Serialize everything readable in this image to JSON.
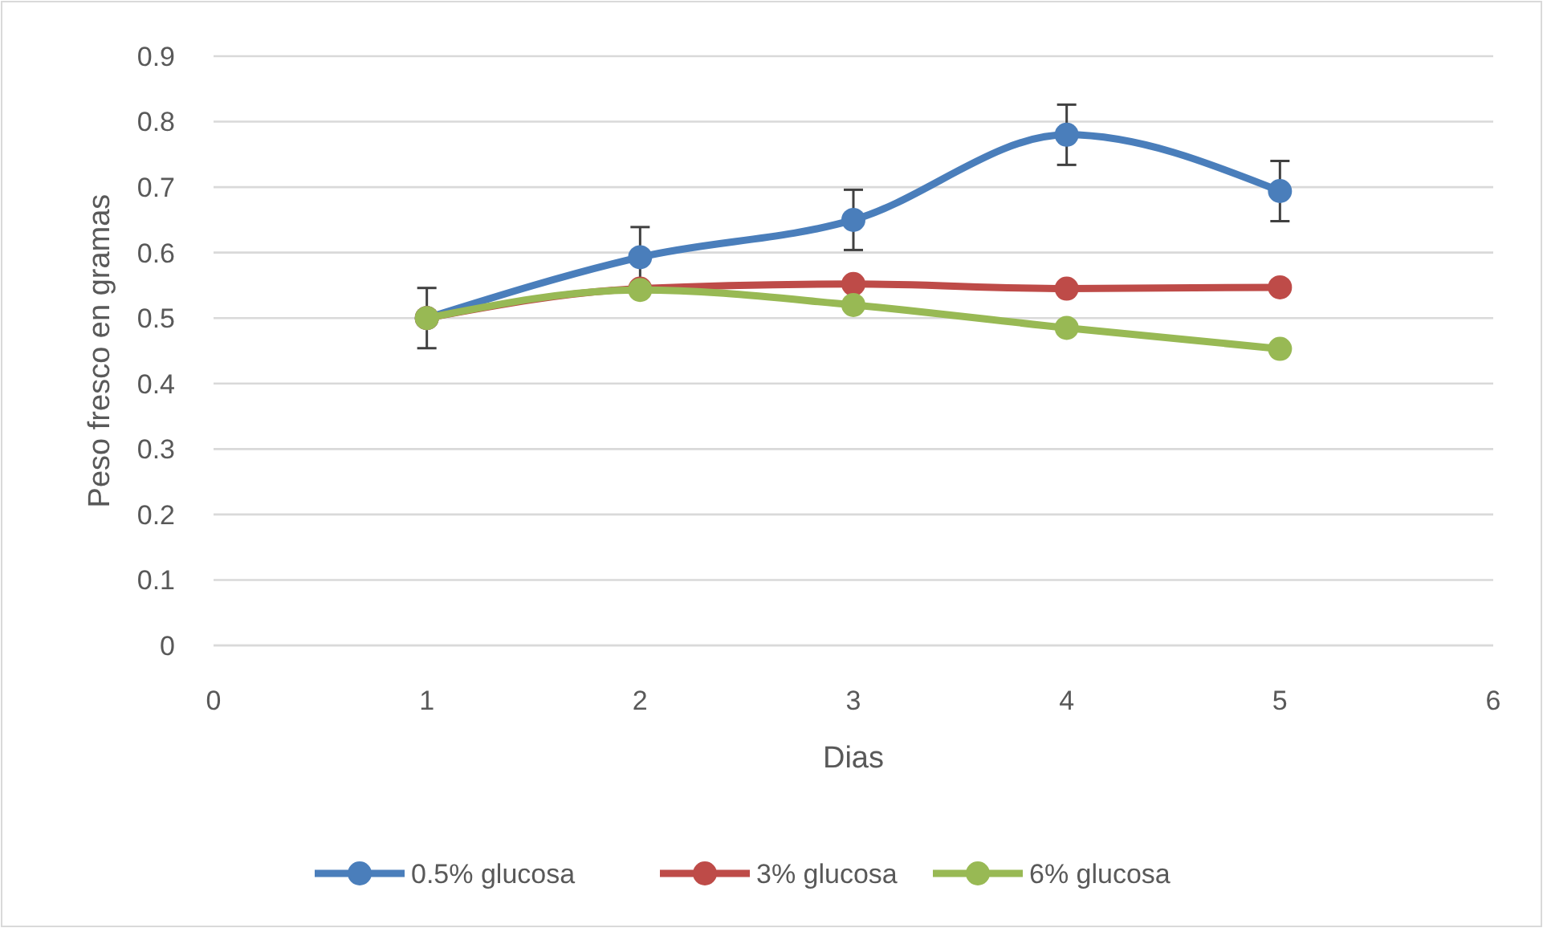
{
  "chart_data": {
    "type": "line",
    "xlabel": "Dias",
    "ylabel": "Peso fresco en gramas",
    "x": [
      1,
      2,
      3,
      4,
      5
    ],
    "series": [
      {
        "name": "0.5% glucosa",
        "color": "#4a7ebb",
        "values": [
          0.5,
          0.593,
          0.65,
          0.78,
          0.694
        ],
        "errors": [
          0.046,
          0.046,
          0.046,
          0.046,
          0.046
        ]
      },
      {
        "name": "3% glucosa",
        "color": "#be4b48",
        "values": [
          0.5,
          0.545,
          0.552,
          0.545,
          0.547
        ]
      },
      {
        "name": "6% glucosa",
        "color": "#98b954",
        "values": [
          0.5,
          0.543,
          0.52,
          0.485,
          0.453
        ]
      }
    ],
    "xlim": [
      0,
      6
    ],
    "xticks": [
      0,
      1,
      2,
      3,
      4,
      5,
      6
    ],
    "ylim": [
      0,
      0.9
    ],
    "yticks": [
      0,
      0.1,
      0.2,
      0.3,
      0.4,
      0.5,
      0.6,
      0.7,
      0.8,
      0.9
    ],
    "grid": "y",
    "legend": "bottom",
    "marker": "circle",
    "line_style": "solid"
  }
}
